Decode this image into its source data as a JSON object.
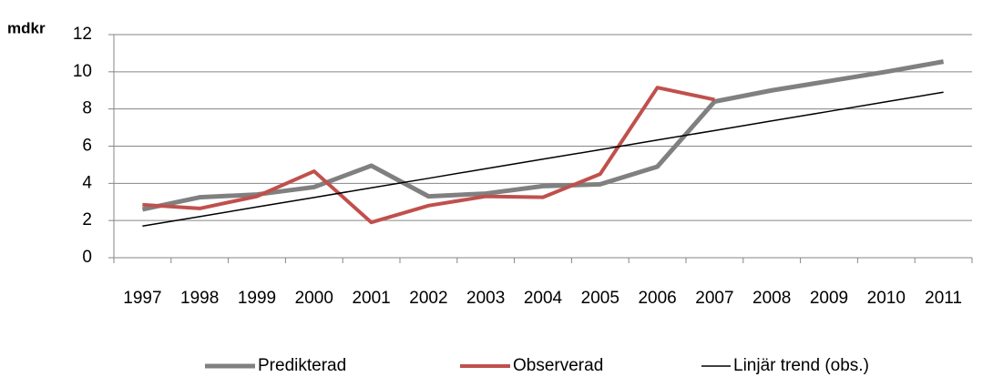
{
  "chart_data": {
    "type": "line",
    "y_axis_label": "mdkr",
    "categories": [
      "1997",
      "1998",
      "1999",
      "2000",
      "2001",
      "2002",
      "2003",
      "2004",
      "2005",
      "2006",
      "2007",
      "2008",
      "2009",
      "2010",
      "2011"
    ],
    "series": [
      {
        "name": "Predikterad",
        "color": "#808080",
        "width": 5,
        "values": [
          2.6,
          3.25,
          3.4,
          3.8,
          4.95,
          3.3,
          3.45,
          3.85,
          3.95,
          4.9,
          8.4,
          9.0,
          9.5,
          10.0,
          10.55
        ]
      },
      {
        "name": "Observerad",
        "color": "#c0504d",
        "width": 4,
        "values": [
          2.85,
          2.65,
          3.3,
          4.65,
          1.9,
          2.8,
          3.3,
          3.25,
          4.5,
          9.15,
          8.5,
          null,
          null,
          null,
          null
        ]
      },
      {
        "name": "Linjär trend (obs.)",
        "color": "#000000",
        "width": 1.5,
        "values": [
          1.7,
          2.21,
          2.73,
          3.24,
          3.76,
          4.27,
          4.79,
          5.3,
          5.81,
          6.33,
          6.84,
          7.36,
          7.87,
          8.39,
          8.9
        ]
      }
    ],
    "ylim": [
      0,
      12
    ],
    "yticks": [
      0,
      2,
      4,
      6,
      8,
      10,
      12
    ],
    "grid": true,
    "legend": "bottom"
  }
}
